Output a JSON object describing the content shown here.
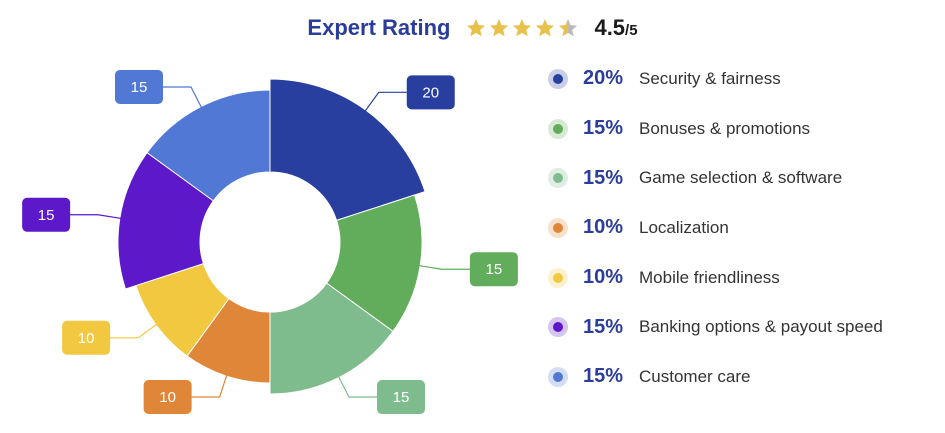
{
  "header": {
    "title": "Expert Rating",
    "score": "4.5",
    "score_out_of": "/5",
    "rating_value": 4.5,
    "rating_max": 5,
    "star_color": "#e8c14a",
    "star_empty_color": "#b9b9b9"
  },
  "chart_data": {
    "type": "pie",
    "style": "donut",
    "categories": [
      "Security & fairness",
      "Bonuses & promotions",
      "Game selection & software",
      "Localization",
      "Mobile friendliness",
      "Banking options & payout speed",
      "Customer care"
    ],
    "values": [
      20,
      15,
      15,
      10,
      10,
      15,
      15
    ],
    "percent_labels": [
      "20%",
      "15%",
      "15%",
      "10%",
      "10%",
      "15%",
      "15%"
    ],
    "value_labels": [
      "20",
      "15",
      "15",
      "10",
      "10",
      "15",
      "15"
    ],
    "colors": [
      "#283fa0",
      "#62ad5c",
      "#7fbc8d",
      "#df8638",
      "#f2c840",
      "#5d18c9",
      "#5078d4"
    ],
    "legend_position": "right"
  }
}
